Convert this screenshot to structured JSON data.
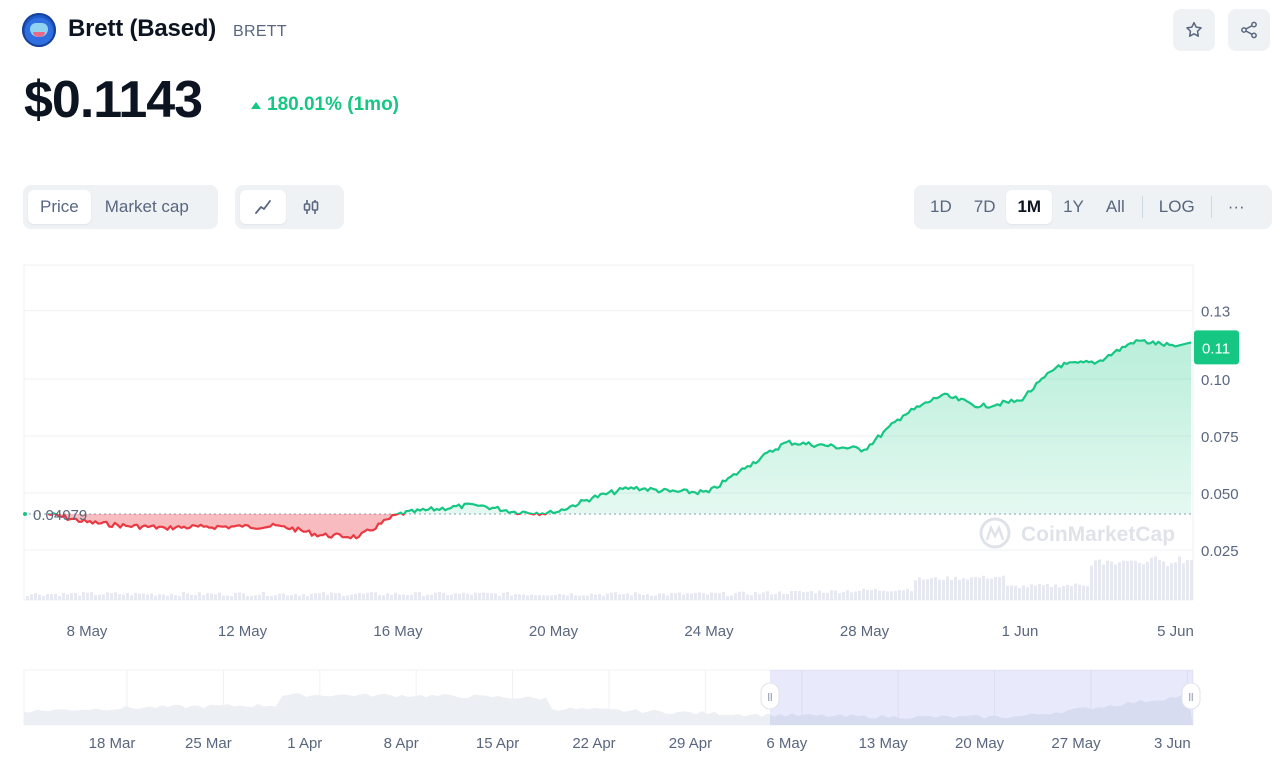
{
  "header": {
    "coin_name": "Brett (Based)",
    "coin_symbol": "BRETT",
    "price": "$0.1143",
    "change_text": "180.01% (1mo)",
    "logo_icon": "brett-logo-icon",
    "star_icon": "star-icon",
    "share_icon": "share-icon"
  },
  "chart_type_tabs": [
    {
      "label": "Price",
      "active": true
    },
    {
      "label": "Market cap",
      "active": false
    }
  ],
  "chart_style_buttons": [
    {
      "icon": "line-chart-icon",
      "active": true
    },
    {
      "icon": "candlestick-icon",
      "active": false
    }
  ],
  "range_buttons": [
    {
      "label": "1D",
      "active": false
    },
    {
      "label": "7D",
      "active": false
    },
    {
      "label": "1M",
      "active": true
    },
    {
      "label": "1Y",
      "active": false
    },
    {
      "label": "All",
      "active": false
    },
    {
      "label": "LOG",
      "active": false
    },
    {
      "label": "···",
      "active": false
    }
  ],
  "watermark": "CoinMarketCap",
  "colors": {
    "up": "#16c784",
    "down": "#ea3943",
    "text_muted": "#58667e",
    "button_bg": "#eff2f5"
  },
  "chart_data": {
    "type": "line",
    "x_ticks": [
      "8 May",
      "12 May",
      "16 May",
      "20 May",
      "24 May",
      "28 May",
      "1 Jun",
      "5 Jun"
    ],
    "y_ticks": [
      "0.025",
      "0.050",
      "0.075",
      "0.10",
      "0.13"
    ],
    "ylim": [
      0,
      0.15
    ],
    "baseline_value": 0.04079,
    "baseline_label": "0.04079",
    "current_value_label": "0.11",
    "grid": true,
    "series": [
      {
        "x": [
          "2024-05-07",
          "2024-05-08",
          "2024-05-09",
          "2024-05-10",
          "2024-05-11",
          "2024-05-12",
          "2024-05-13",
          "2024-05-14",
          "2024-05-15",
          "2024-05-16",
          "2024-05-17",
          "2024-05-18",
          "2024-05-19",
          "2024-05-20",
          "2024-05-21",
          "2024-05-22",
          "2024-05-23",
          "2024-05-24",
          "2024-05-25",
          "2024-05-26",
          "2024-05-27",
          "2024-05-28",
          "2024-05-29",
          "2024-05-30",
          "2024-05-31",
          "2024-06-01",
          "2024-06-02",
          "2024-06-03",
          "2024-06-04",
          "2024-06-05"
        ],
        "values": [
          0.0408,
          0.0372,
          0.0356,
          0.0348,
          0.0352,
          0.0352,
          0.0355,
          0.0315,
          0.0308,
          0.0408,
          0.043,
          0.0448,
          0.0418,
          0.0412,
          0.0478,
          0.0525,
          0.0506,
          0.0503,
          0.0618,
          0.0723,
          0.0708,
          0.069,
          0.084,
          0.093,
          0.088,
          0.0905,
          0.106,
          0.1075,
          0.117,
          0.1143
        ]
      }
    ]
  },
  "navigator": {
    "x_ticks": [
      "18 Mar",
      "25 Mar",
      "1 Apr",
      "8 Apr",
      "15 Apr",
      "22 Apr",
      "29 Apr",
      "6 May",
      "13 May",
      "20 May",
      "27 May",
      "3 Jun"
    ],
    "handle_glyph": "ll"
  }
}
